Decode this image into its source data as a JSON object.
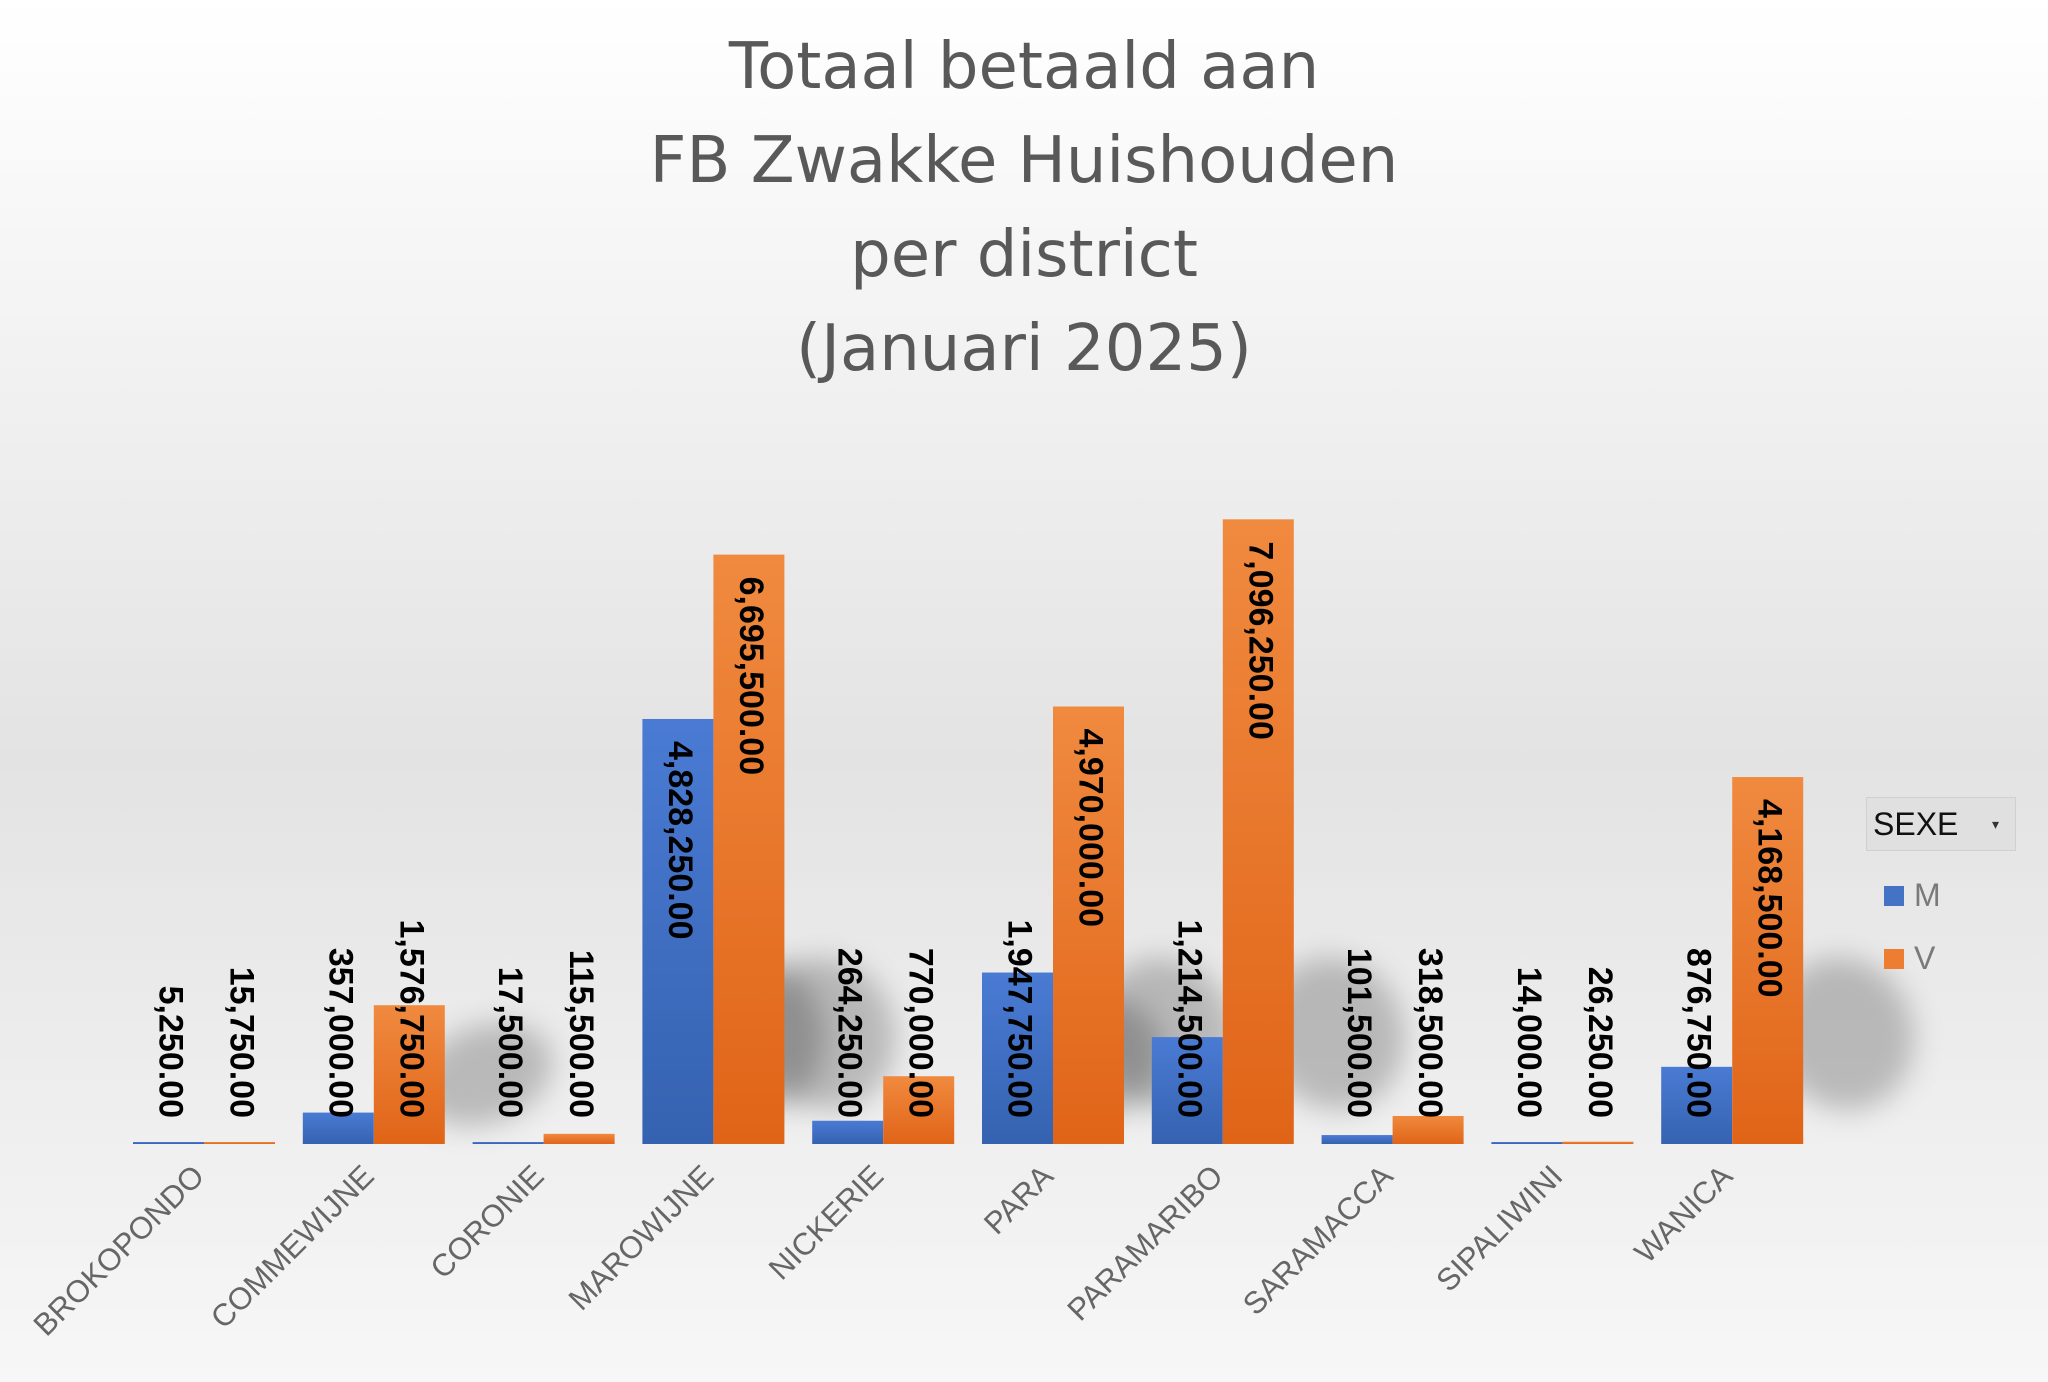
{
  "chart_data": {
    "type": "bar",
    "title_lines": [
      "Totaal betaald aan",
      "FB Zwakke Huishouden",
      "per district",
      "(Januari 2025)"
    ],
    "categories": [
      "BROKOPONDO",
      "COMMEWIJNE",
      "CORONIE",
      "MAROWIJNE",
      "NICKERIE",
      "PARA",
      "PARAMARIBO",
      "SARAMACCA",
      "SIPALIWINI",
      "WANICA"
    ],
    "series": [
      {
        "name": "M",
        "color": "#4472c4",
        "values": [
          5250,
          357000,
          17500,
          4828250,
          264250,
          1947750,
          1214500,
          101500,
          14000,
          876750
        ],
        "labels": [
          "5,250.00",
          "357,000.00",
          "17,500.00",
          "4,828,250.00",
          "264,250.00",
          "1,947,750.00",
          "1,214,500.00",
          "101,500.00",
          "14,000.00",
          "876,750.00"
        ]
      },
      {
        "name": "V",
        "color": "#ed7d31",
        "values": [
          15750,
          1576750,
          115500,
          6695500,
          770000,
          4970000,
          7096250,
          318500,
          26250,
          4168500
        ],
        "labels": [
          "15,750.00",
          "1,576,750.00",
          "115,500.00",
          "6,695,500.00",
          "770,000.00",
          "4,970,000.00",
          "7,096,250.00",
          "318,500.00",
          "26,250.00",
          "4,168,500.00"
        ]
      }
    ],
    "ylim": [
      0,
      7100000
    ],
    "grid": false,
    "legend": {
      "title": "SEXE",
      "position": "right"
    }
  },
  "icons": {
    "legend_dropdown": "chevron-down-icon"
  }
}
